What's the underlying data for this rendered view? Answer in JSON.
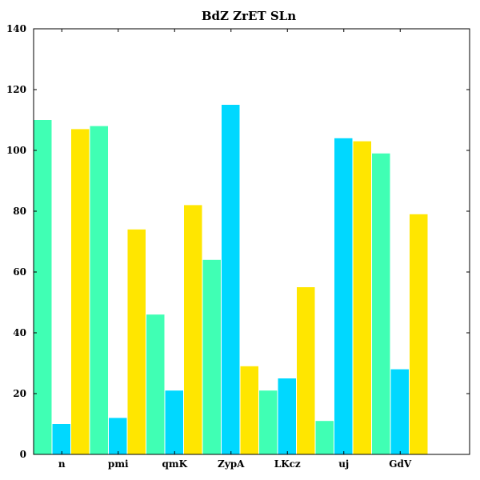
{
  "chart_data": {
    "type": "bar",
    "title": "BdZ ZrET SLn",
    "xlabel": "",
    "ylabel": "",
    "categories": [
      "n",
      "pmi",
      "qmK",
      "ZypA",
      "LKcz",
      "uj",
      "GdV"
    ],
    "ylim": [
      0,
      140
    ],
    "yticks": [
      0,
      20,
      40,
      60,
      80,
      100,
      120,
      140
    ],
    "grid": false,
    "series": [
      {
        "color": "#40ffb4",
        "values": [
          110,
          108,
          46,
          64,
          21,
          11,
          99
        ]
      },
      {
        "color": "#00d8ff",
        "values": [
          10,
          12,
          21,
          115,
          25,
          104,
          28
        ]
      },
      {
        "color": "#ffe600",
        "values": [
          107,
          74,
          82,
          29,
          55,
          103,
          79
        ]
      }
    ]
  }
}
